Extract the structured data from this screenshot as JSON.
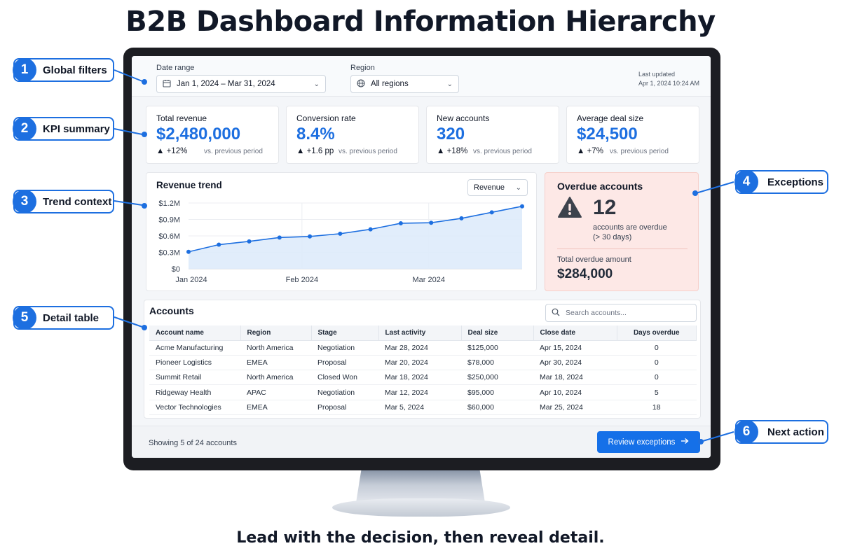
{
  "title": "B2B Dashboard Information Hierarchy",
  "tagline": "Lead with the decision, then reveal detail.",
  "filters": {
    "date_label": "Date range",
    "date_value": "Jan 1, 2024 – Mar 31, 2024",
    "region_label": "Region",
    "region_value": "All regions",
    "last_updated_label": "Last updated",
    "last_updated_value": "Apr 1, 2024 10:24 AM"
  },
  "kpis": [
    {
      "label": "Total revenue",
      "value": "$2,480,000",
      "delta": "▲ +12%",
      "vs": "vs. previous period"
    },
    {
      "label": "Conversion rate",
      "value": "8.4%",
      "delta": "▲ +1.6 pp",
      "vs": "vs. previous period"
    },
    {
      "label": "New accounts",
      "value": "320",
      "delta": "▲ +18%",
      "vs": "vs. previous period"
    },
    {
      "label": "Average deal size",
      "value": "$24,500",
      "delta": "▲ +7%",
      "vs": "vs. previous period"
    }
  ],
  "trend": {
    "title": "Revenue trend",
    "metric_select": "Revenue"
  },
  "chart_data": {
    "type": "area",
    "title": "Revenue trend",
    "x_ticks": [
      "Jan 2024",
      "Feb 2024",
      "Mar 2024"
    ],
    "y_ticks": [
      "$0",
      "$0.3M",
      "$0.6M",
      "$0.9M",
      "$1.2M"
    ],
    "ylim": [
      0,
      1.2
    ],
    "x": [
      0,
      1,
      2,
      3,
      4,
      5,
      6,
      7,
      8,
      9,
      10,
      11
    ],
    "values": [
      0.31,
      0.44,
      0.5,
      0.57,
      0.59,
      0.64,
      0.72,
      0.83,
      0.84,
      0.92,
      1.03,
      1.14
    ],
    "grid": true
  },
  "exceptions": {
    "title": "Overdue accounts",
    "count": "12",
    "desc_line1": "accounts are overdue",
    "desc_line2": "(> 30 days)",
    "amount_label": "Total overdue amount",
    "amount": "$284,000"
  },
  "accounts": {
    "title": "Accounts",
    "search_placeholder": "Search accounts...",
    "columns": [
      "Account name",
      "Region",
      "Stage",
      "Last activity",
      "Deal size",
      "Close date",
      "Days overdue"
    ],
    "rows": [
      [
        "Acme Manufacturing",
        "North America",
        "Negotiation",
        "Mar 28, 2024",
        "$125,000",
        "Apr 15, 2024",
        "0"
      ],
      [
        "Pioneer Logistics",
        "EMEA",
        "Proposal",
        "Mar 20, 2024",
        "$78,000",
        "Apr 30, 2024",
        "0"
      ],
      [
        "Summit Retail",
        "North America",
        "Closed Won",
        "Mar 18, 2024",
        "$250,000",
        "Mar 18, 2024",
        "0"
      ],
      [
        "Ridgeway Health",
        "APAC",
        "Negotiation",
        "Mar 12, 2024",
        "$95,000",
        "Apr 10, 2024",
        "5"
      ],
      [
        "Vector Technologies",
        "EMEA",
        "Proposal",
        "Mar 5, 2024",
        "$60,000",
        "Mar 25, 2024",
        "18"
      ]
    ]
  },
  "footer": {
    "showing": "Showing 5 of 24 accounts",
    "cta": "Review exceptions"
  },
  "callouts": [
    {
      "num": "1",
      "label": "Global filters"
    },
    {
      "num": "2",
      "label": "KPI summary"
    },
    {
      "num": "3",
      "label": "Trend context"
    },
    {
      "num": "4",
      "label": "Exceptions"
    },
    {
      "num": "5",
      "label": "Detail table"
    },
    {
      "num": "6",
      "label": "Next action"
    }
  ],
  "colors": {
    "accent": "#1d6fe0",
    "exception_bg": "#fde8e6",
    "cta": "#1570e8"
  }
}
